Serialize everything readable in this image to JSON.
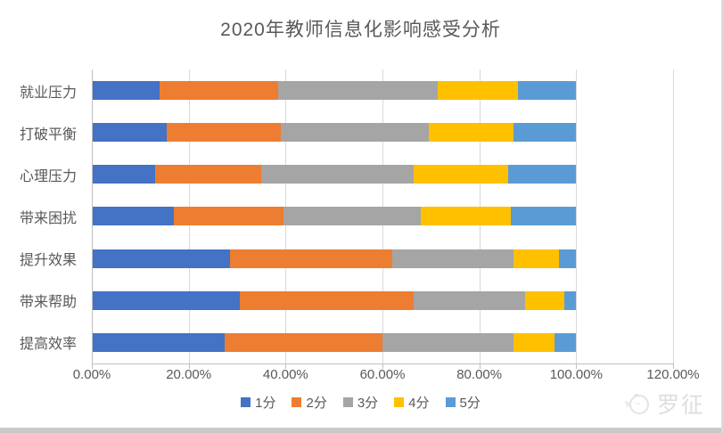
{
  "watermark": {
    "text": "罗征"
  },
  "chart_data": {
    "type": "bar",
    "orientation": "horizontal",
    "stacked": true,
    "title": "2020年教师信息化影响感受分析",
    "categories": [
      "就业压力",
      "打破平衡",
      "心理压力",
      "带来困扰",
      "提升效果",
      "带来帮助",
      "提高效率"
    ],
    "series": [
      {
        "name": "1分",
        "color": "#4472C4",
        "values": [
          14,
          15.5,
          13,
          17,
          28.5,
          30.5,
          27.5
        ]
      },
      {
        "name": "2分",
        "color": "#ED7D31",
        "values": [
          24.5,
          23.5,
          22,
          22.5,
          33.5,
          36,
          32.5
        ]
      },
      {
        "name": "3分",
        "color": "#A5A5A5",
        "values": [
          33,
          30.5,
          31.5,
          28.5,
          25,
          23,
          27
        ]
      },
      {
        "name": "4分",
        "color": "#FFC000",
        "values": [
          16.5,
          17.5,
          19.5,
          18.5,
          9.5,
          8,
          8.5
        ]
      },
      {
        "name": "5分",
        "color": "#5B9BD5",
        "values": [
          12,
          13,
          14,
          13.5,
          3.5,
          2.5,
          4.5
        ]
      }
    ],
    "x_ticks": [
      "0.00%",
      "20.00%",
      "40.00%",
      "60.00%",
      "80.00%",
      "100.00%",
      "120.00%"
    ],
    "xlim": [
      0,
      120
    ],
    "value_unit": "percent",
    "grid": true,
    "legend_position": "bottom",
    "colors": {
      "gridline": "#D9D9D9",
      "axis": "#BFBFBF",
      "text": "#595959",
      "watermark": "#DEDEDE"
    }
  }
}
